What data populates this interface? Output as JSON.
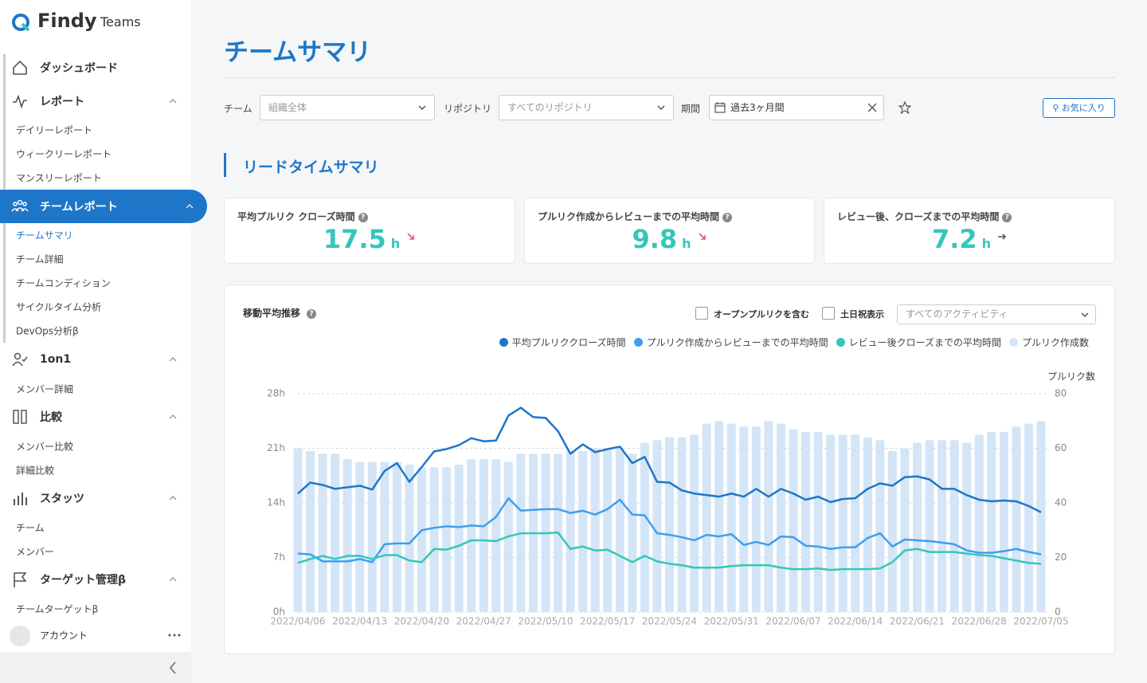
{
  "sidebar": {
    "logo": "Findy",
    "logo_sub": "Teams",
    "nav": [
      {
        "label": "ダッシュボード"
      },
      {
        "label": "レポート",
        "children": [
          "デイリーレポート",
          "ウィークリーレポート",
          "マンスリーレポート"
        ]
      },
      {
        "label": "チームレポート",
        "children": [
          "チームサマリ",
          "チーム詳細",
          "チームコンディション",
          "サイクルタイム分析",
          "DevOps分析β"
        ]
      },
      {
        "label": "1on1",
        "children": [
          "メンバー詳細"
        ]
      },
      {
        "label": "比較",
        "children": [
          "メンバー比較",
          "詳細比較"
        ]
      },
      {
        "label": "スタッツ",
        "children": [
          "チーム",
          "メンバー"
        ]
      },
      {
        "label": "ターゲット管理β",
        "children": [
          "チームターゲットβ"
        ]
      }
    ],
    "account": "アカウント"
  },
  "page_title": "チームサマリ",
  "filters": [
    {
      "label": "チーム",
      "value": "組織全体"
    },
    {
      "label": "リポジトリ",
      "value": "すべてのリポジトリ"
    },
    {
      "label": "期間",
      "value": "過去3ヶ月間"
    }
  ],
  "favorite_button": "お気に入り",
  "section_title": "リードタイムサマリ",
  "kpis": [
    {
      "label": "平均プルリク クローズ時間",
      "value": "17.5",
      "unit": "h"
    },
    {
      "label": "プルリク作成からレビューまでの平均時間",
      "value": "9.8",
      "unit": "h"
    },
    {
      "label": "レビュー後、クローズまでの平均時間",
      "value": "7.2",
      "unit": "h"
    }
  ],
  "chart_panel": {
    "title": "移動平均推移",
    "options": [
      "オープンプルリクを含む",
      "土日祝表示"
    ],
    "activity_select": "すべてのアクティビティ"
  },
  "chart_data": {
    "type": "combo",
    "categories": [
      "2022/04/06",
      null,
      null,
      null,
      null,
      "2022/04/13",
      null,
      null,
      null,
      null,
      "2022/04/20",
      null,
      null,
      null,
      null,
      "2022/04/27",
      null,
      null,
      null,
      null,
      "2022/05/10",
      null,
      null,
      null,
      null,
      "2022/05/17",
      null,
      null,
      null,
      null,
      "2022/05/24",
      null,
      null,
      null,
      null,
      "2022/05/31",
      null,
      null,
      null,
      null,
      "2022/06/07",
      null,
      null,
      null,
      null,
      "2022/06/14",
      null,
      null,
      null,
      null,
      "2022/06/21",
      null,
      null,
      null,
      null,
      "2022/06/28",
      null,
      null,
      null,
      null,
      "2022/07/05"
    ],
    "ylim": [
      0,
      28
    ],
    "yticks": [
      {
        "value": 0,
        "label": "0h"
      },
      {
        "value": 7,
        "label": "7h"
      },
      {
        "value": 14,
        "label": "14h"
      },
      {
        "value": 21,
        "label": "21h"
      },
      {
        "value": 28,
        "label": "28h"
      }
    ],
    "y2label": "プルリク数",
    "y2lim": [
      0,
      80
    ],
    "y2ticks": [
      0,
      20,
      40,
      60,
      80
    ],
    "grid": true,
    "series": [
      {
        "name": "平均プルリククローズ時間",
        "type": "line",
        "color": "#1e76c8",
        "values": [
          15.2,
          16.6,
          16.3,
          15.8,
          16.0,
          16.2,
          15.7,
          18.1,
          19.1,
          16.7,
          18.6,
          20.6,
          20.9,
          21.4,
          22.3,
          21.9,
          22.0,
          25.2,
          26.2,
          25.0,
          24.9,
          23.2,
          20.3,
          21.5,
          20.5,
          20.9,
          21.2,
          19.1,
          19.9,
          16.7,
          16.6,
          15.6,
          15.2,
          15.0,
          14.8,
          15.2,
          14.8,
          15.8,
          14.8,
          15.8,
          15.2,
          14.4,
          14.8,
          14.1,
          14.5,
          14.6,
          15.8,
          16.5,
          16.2,
          17.3,
          17.4,
          17.0,
          15.8,
          15.8,
          15.0,
          14.4,
          14.2,
          14.3,
          14.2,
          13.6,
          12.8
        ]
      },
      {
        "name": "プルリク作成からレビューまでの平均時間",
        "type": "line",
        "color": "#3f9ef0",
        "values": [
          7.5,
          7.4,
          6.5,
          6.5,
          6.5,
          6.8,
          6.4,
          8.7,
          8.8,
          8.8,
          10.5,
          10.8,
          11.0,
          10.9,
          11.1,
          11.0,
          12.2,
          14.6,
          13.0,
          13.1,
          13.2,
          13.2,
          12.7,
          13.0,
          12.5,
          13.2,
          14.4,
          12.5,
          12.4,
          10.1,
          9.9,
          9.6,
          9.2,
          9.9,
          9.7,
          10.0,
          8.6,
          9.0,
          8.6,
          9.7,
          9.6,
          8.5,
          8.4,
          8.1,
          8.3,
          8.3,
          9.5,
          10.1,
          8.4,
          9.3,
          9.2,
          9.1,
          8.9,
          8.7,
          7.9,
          7.6,
          7.6,
          7.8,
          8.1,
          7.7,
          7.4
        ]
      },
      {
        "name": "レビュー後クローズまでの平均時間",
        "type": "line",
        "color": "#35c6bb",
        "values": [
          6.3,
          6.8,
          7.2,
          6.8,
          7.2,
          7.2,
          6.8,
          7.3,
          7.3,
          6.6,
          6.4,
          8.1,
          8.0,
          8.5,
          9.2,
          9.2,
          9.1,
          9.7,
          10.1,
          10.1,
          10.1,
          10.2,
          8.1,
          8.4,
          7.9,
          8.0,
          7.2,
          6.4,
          7.2,
          6.5,
          6.2,
          6.0,
          5.7,
          5.7,
          5.7,
          5.9,
          6.0,
          6.0,
          6.0,
          5.7,
          5.5,
          5.5,
          5.6,
          5.4,
          5.5,
          5.5,
          5.5,
          5.6,
          6.4,
          7.9,
          8.1,
          7.7,
          7.7,
          7.7,
          7.5,
          7.3,
          7.2,
          6.9,
          6.6,
          6.3,
          6.2
        ]
      },
      {
        "name": "プルリク作成数",
        "type": "bar",
        "axis": "y2",
        "color": "#d3e5f6",
        "values": [
          60,
          59,
          58,
          58,
          56,
          55,
          55,
          55,
          55,
          54,
          53,
          53,
          53,
          54,
          56,
          56,
          56,
          55,
          58,
          58,
          58,
          58,
          59,
          59,
          60,
          60,
          60,
          58,
          62,
          63,
          64,
          64,
          65,
          69,
          70,
          69,
          68,
          68,
          70,
          69,
          67,
          66,
          66,
          65,
          65,
          65,
          64,
          63,
          59,
          60,
          62,
          63,
          63,
          63,
          62,
          65,
          66,
          66,
          68,
          69,
          70
        ]
      }
    ]
  }
}
